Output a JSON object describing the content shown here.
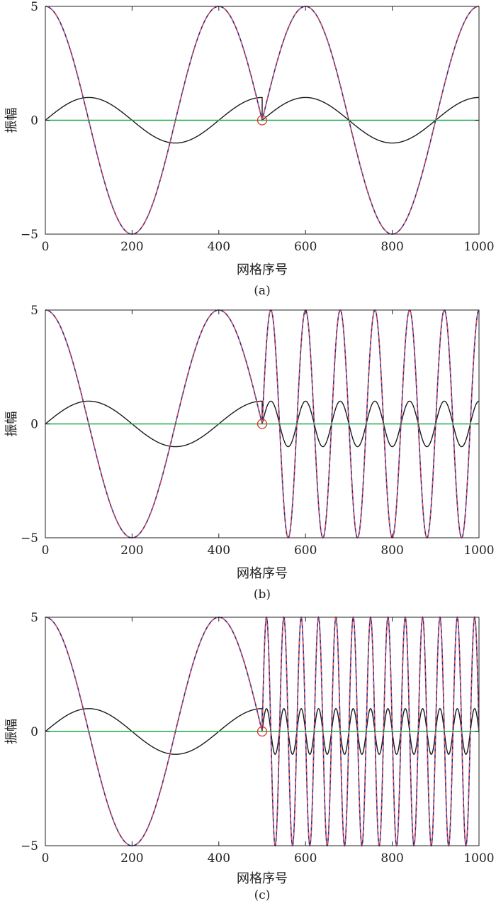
{
  "colors": {
    "black_curve": "#1a1a1a",
    "blue_curve": "#1f2a8c",
    "red_dash": "#ff4d4d",
    "green_line": "#21a84a",
    "marker": "#e03030"
  },
  "chart_data": [
    {
      "type": "line",
      "caption": "(a)",
      "xlabel": "网格序号",
      "ylabel": "振幅",
      "xlim": [
        0,
        1000
      ],
      "ylim": [
        -5,
        5
      ],
      "xticks": [
        "0",
        "200",
        "400",
        "600",
        "800",
        "1000"
      ],
      "yticks": [
        "−5",
        "0",
        "5"
      ],
      "split_x": 500,
      "left_period": 400,
      "right_period": 400,
      "marker": {
        "x": 500,
        "y": 0
      },
      "series": [
        {
          "style": "black",
          "function": "sine",
          "amplitude": 1
        },
        {
          "style": "blue",
          "function": "cosine",
          "amplitude": 5
        },
        {
          "style": "red-dashed",
          "function": "cosine",
          "amplitude": 5
        },
        {
          "style": "green",
          "function": "zero",
          "amplitude": 0
        }
      ]
    },
    {
      "type": "line",
      "caption": "(b)",
      "xlabel": "网格序号",
      "ylabel": "振幅",
      "xlim": [
        0,
        1000
      ],
      "ylim": [
        -5,
        5
      ],
      "xticks": [
        "0",
        "200",
        "400",
        "600",
        "800",
        "1000"
      ],
      "yticks": [
        "−5",
        "0",
        "5"
      ],
      "split_x": 500,
      "left_period": 400,
      "right_period": 80,
      "marker": {
        "x": 500,
        "y": 0
      },
      "series": [
        {
          "style": "black",
          "function": "sine",
          "amplitude": 1
        },
        {
          "style": "blue",
          "function": "cosine",
          "amplitude": 5
        },
        {
          "style": "red-dashed",
          "function": "cosine",
          "amplitude": 5
        },
        {
          "style": "green",
          "function": "zero",
          "amplitude": 0
        }
      ]
    },
    {
      "type": "line",
      "caption": "(c)",
      "xlabel": "网格序号",
      "ylabel": "振幅",
      "xlim": [
        0,
        1000
      ],
      "ylim": [
        -5,
        5
      ],
      "xticks": [
        "0",
        "200",
        "400",
        "600",
        "800",
        "1000"
      ],
      "yticks": [
        "−5",
        "0",
        "5"
      ],
      "split_x": 500,
      "left_period": 400,
      "right_period": 40,
      "marker": {
        "x": 500,
        "y": 0
      },
      "series": [
        {
          "style": "black",
          "function": "sine",
          "amplitude": 1
        },
        {
          "style": "blue",
          "function": "cosine",
          "amplitude": 5
        },
        {
          "style": "red-dashed",
          "function": "cosine",
          "amplitude": 5
        },
        {
          "style": "green",
          "function": "zero",
          "amplitude": 0
        }
      ]
    }
  ]
}
